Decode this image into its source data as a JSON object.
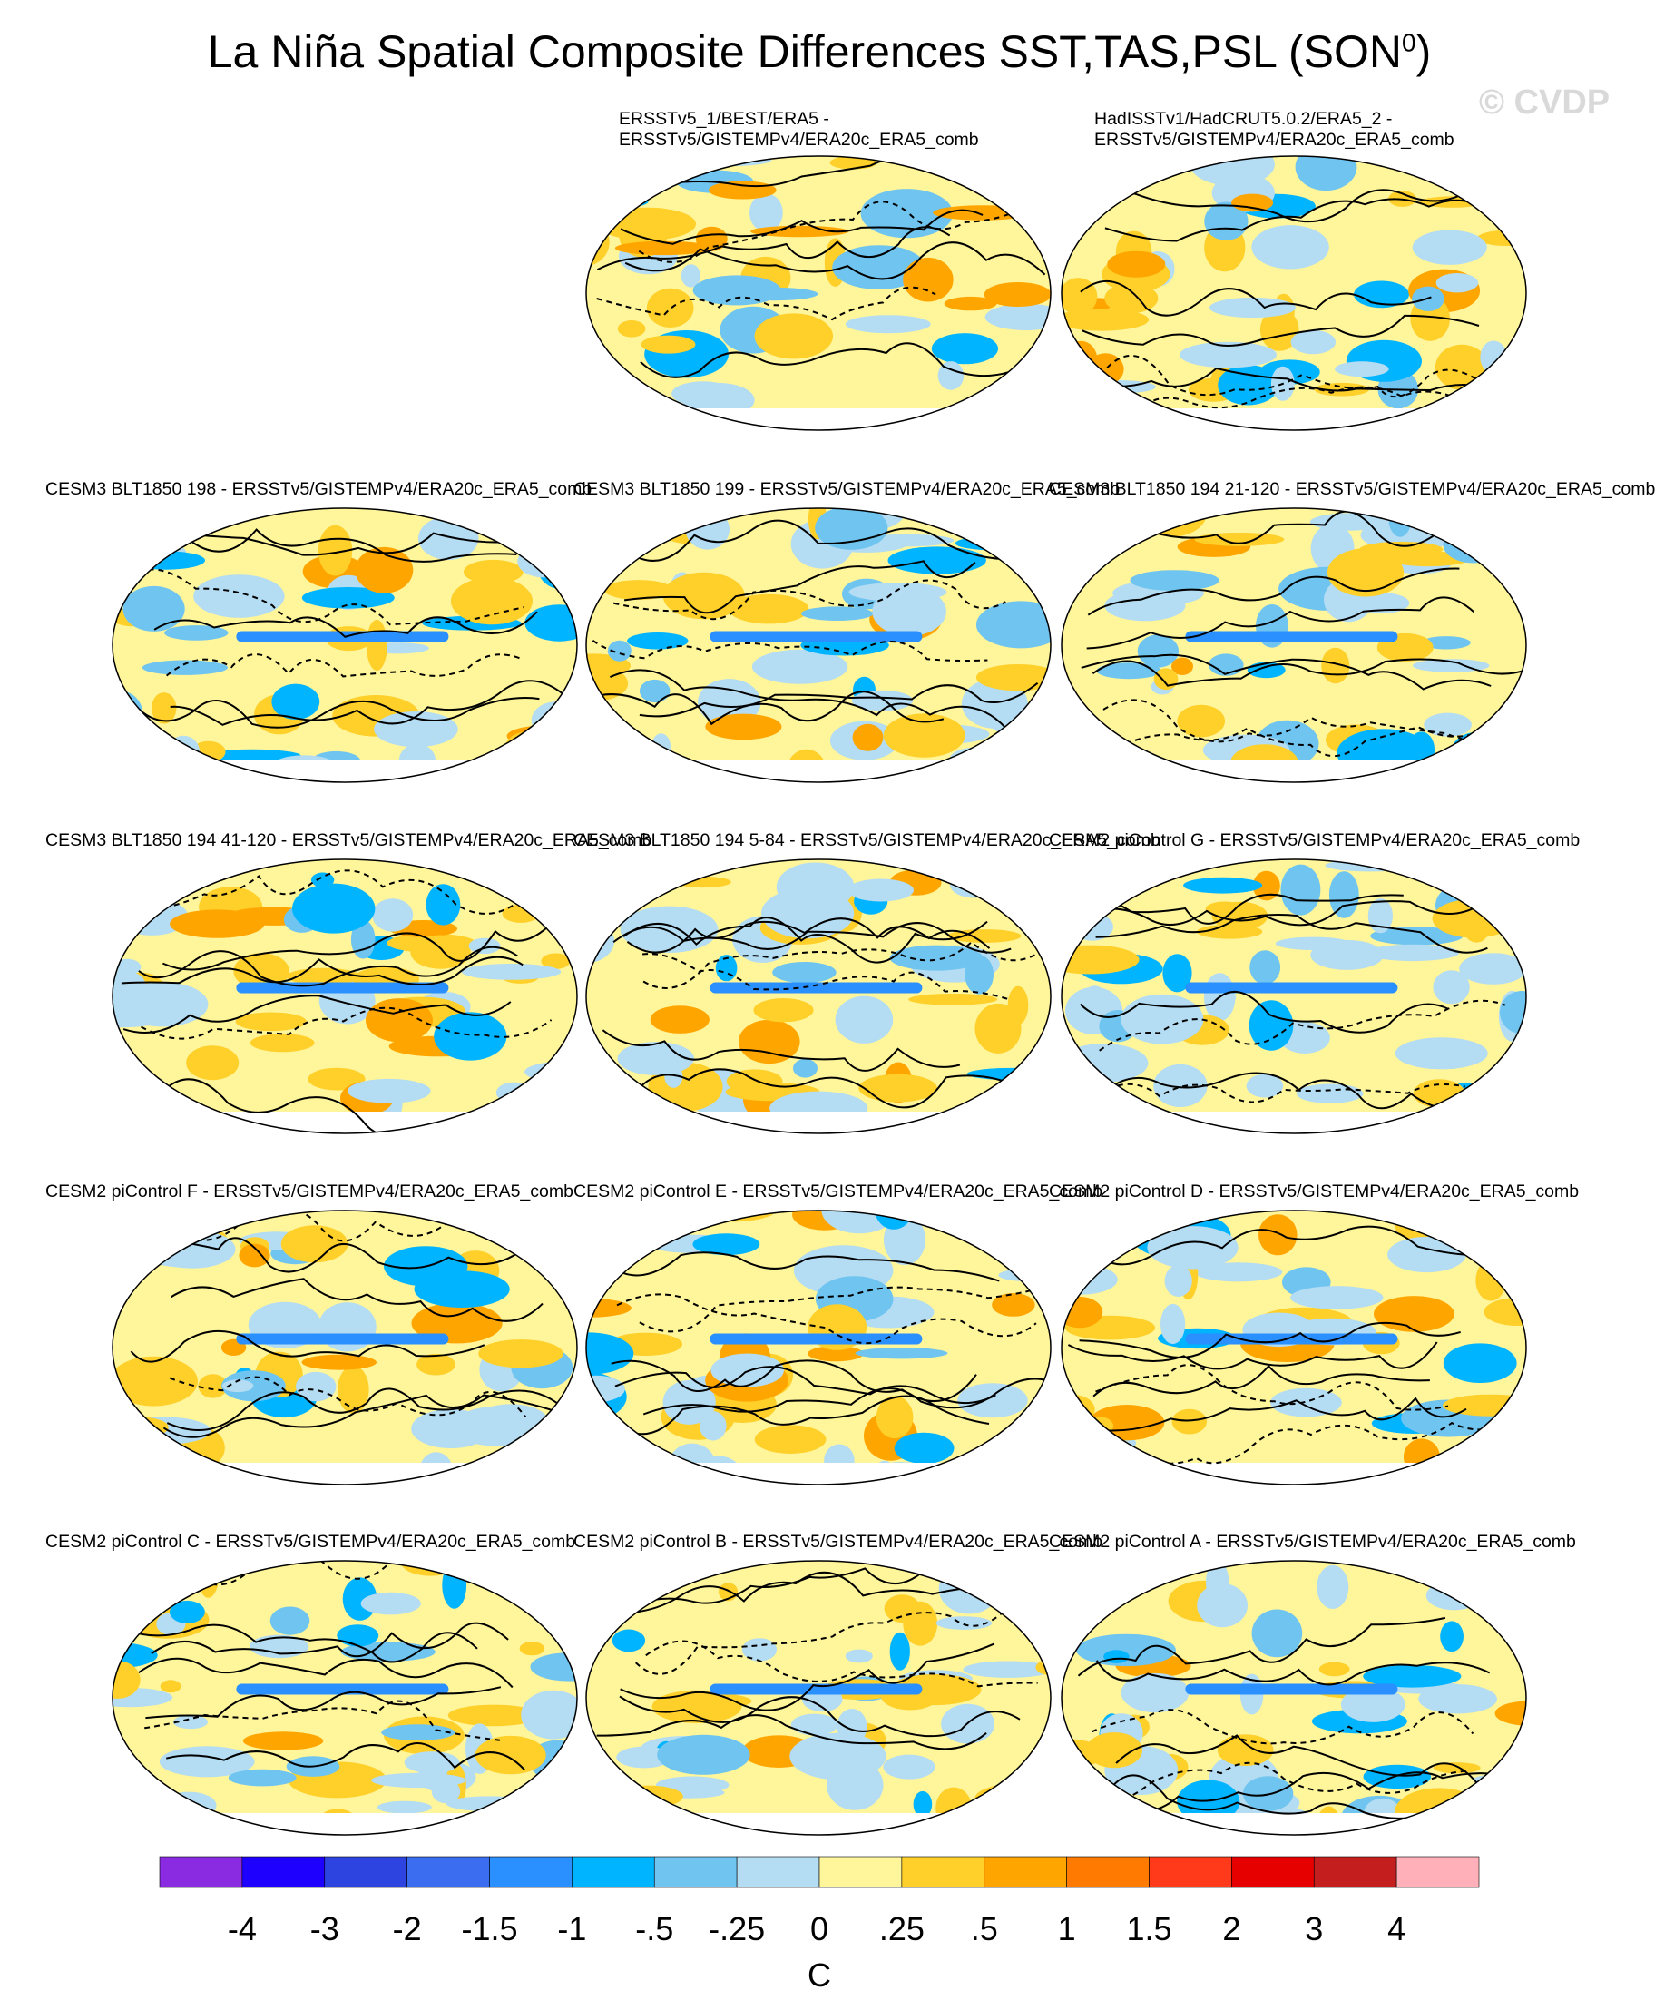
{
  "title": "La Niña Spatial Composite Differences SST,TAS,PSL (SON",
  "title_sup": "0",
  "title_close": ")",
  "watermark": "© CVDP",
  "panels": [
    {
      "label": "ERSSTv5_1/BEST/ERA5 -\nERSSTv5/GISTEMPv4/ERA20c_ERA5_comb"
    },
    {
      "label": "HadISSTv1/HadCRUT5.0.2/ERA5_2 -\nERSSTv5/GISTEMPv4/ERA20c_ERA5_comb"
    },
    {
      "label": "CESM3 BLT1850 198 - ERSSTv5/GISTEMPv4/ERA20c_ERA5_comb"
    },
    {
      "label": "CESM3 BLT1850 199 - ERSSTv5/GISTEMPv4/ERA20c_ERA5_comb"
    },
    {
      "label": "CESM3 BLT1850 194 21-120 - ERSSTv5/GISTEMPv4/ERA20c_ERA5_comb"
    },
    {
      "label": "CESM3 BLT1850 194 41-120 - ERSSTv5/GISTEMPv4/ERA20c_ERA5_comb"
    },
    {
      "label": "CESM3 BLT1850 194 5-84 - ERSSTv5/GISTEMPv4/ERA20c_ERA5_comb"
    },
    {
      "label": "CESM2 piControl G - ERSSTv5/GISTEMPv4/ERA20c_ERA5_comb"
    },
    {
      "label": "CESM2 piControl F - ERSSTv5/GISTEMPv4/ERA20c_ERA5_comb"
    },
    {
      "label": "CESM2 piControl E - ERSSTv5/GISTEMPv4/ERA20c_ERA5_comb"
    },
    {
      "label": "CESM2 piControl D - ERSSTv5/GISTEMPv4/ERA20c_ERA5_comb"
    },
    {
      "label": "CESM2 piControl C - ERSSTv5/GISTEMPv4/ERA20c_ERA5_comb"
    },
    {
      "label": "CESM2 piControl B - ERSSTv5/GISTEMPv4/ERA20c_ERA5_comb"
    },
    {
      "label": "CESM2 piControl A - ERSSTv5/GISTEMPv4/ERA20c_ERA5_comb"
    }
  ],
  "colorbar": {
    "colors": [
      "#8a2be2",
      "#1e00ff",
      "#2d44e0",
      "#3a6df0",
      "#2a90ff",
      "#00b4ff",
      "#6fc4f0",
      "#b4dcf2",
      "#fff59a",
      "#ffcf2a",
      "#ffa500",
      "#ff7a00",
      "#ff3a1a",
      "#e60000",
      "#c41e1e",
      "#ffb0b8"
    ],
    "ticks": [
      "-4",
      "-3",
      "-2",
      "-1.5",
      "-1",
      "-.5",
      "-.25",
      "0",
      ".25",
      ".5",
      "1",
      "1.5",
      "2",
      "3",
      "4"
    ],
    "units": "C"
  }
}
